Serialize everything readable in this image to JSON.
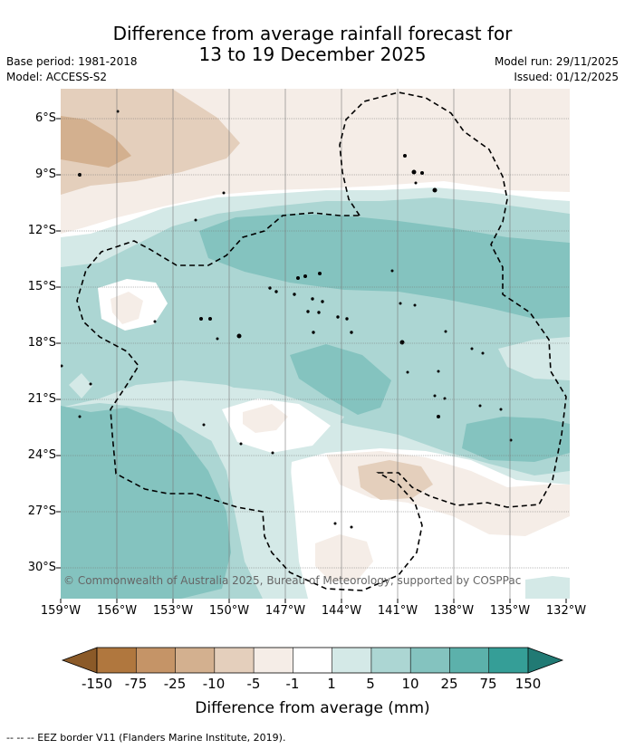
{
  "title_line1": "Difference from average rainfall forecast for",
  "title_line2": "13 to 19 December 2025",
  "base_period": "Base period: 1981-2018",
  "model": "Model: ACCESS-S2",
  "model_run": "Model run: 29/11/2025",
  "issued": "Issued: 01/12/2025",
  "lat_labels": [
    "6°S",
    "9°S",
    "12°S",
    "15°S",
    "18°S",
    "21°S",
    "24°S",
    "27°S",
    "30°S"
  ],
  "lon_labels": [
    "159°W",
    "156°W",
    "153°W",
    "150°W",
    "147°W",
    "144°W",
    "141°W",
    "138°W",
    "135°W",
    "132°W"
  ],
  "credit": "© Commonwealth of Australia 2025, Bureau of Meteorology, supported by COSPPac",
  "colorbar_labels": [
    "-150",
    "-75",
    "-25",
    "-10",
    "-5",
    "-1",
    "1",
    "5",
    "10",
    "25",
    "75",
    "150"
  ],
  "colorbar_title": "Difference from average (mm)",
  "colors": {
    "bins": [
      "#b0773e",
      "#c59467",
      "#d3b08f",
      "#e4cfbc",
      "#f5ede7",
      "#ffffff",
      "#d4e9e7",
      "#acd6d3",
      "#84c3bf",
      "#5cb1ab",
      "#359e97"
    ],
    "under": "#8b5a28",
    "over": "#217a74"
  },
  "eez_legend": "--  --  -- EEZ border V11 (Flanders Marine Institute, 2019)."
}
